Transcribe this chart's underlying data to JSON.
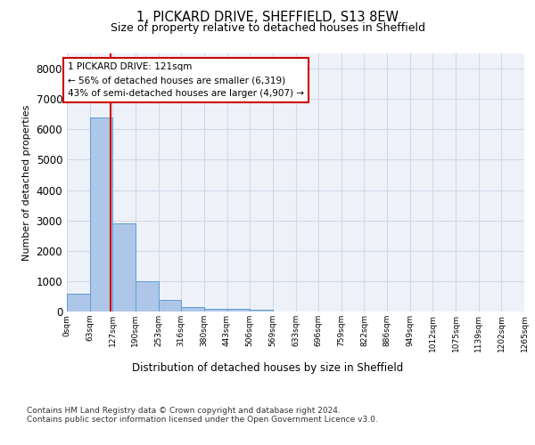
{
  "title": "1, PICKARD DRIVE, SHEFFIELD, S13 8EW",
  "subtitle": "Size of property relative to detached houses in Sheffield",
  "xlabel": "Distribution of detached houses by size in Sheffield",
  "ylabel": "Number of detached properties",
  "bin_labels": [
    "0sqm",
    "63sqm",
    "127sqm",
    "190sqm",
    "253sqm",
    "316sqm",
    "380sqm",
    "443sqm",
    "506sqm",
    "569sqm",
    "633sqm",
    "696sqm",
    "759sqm",
    "822sqm",
    "886sqm",
    "949sqm",
    "1012sqm",
    "1075sqm",
    "1139sqm",
    "1202sqm",
    "1265sqm"
  ],
  "bar_heights": [
    600,
    6400,
    2900,
    1000,
    380,
    160,
    100,
    80,
    60,
    0,
    0,
    0,
    0,
    0,
    0,
    0,
    0,
    0,
    0,
    0
  ],
  "bar_color": "#aec6e8",
  "bar_edge_color": "#5a9fd4",
  "property_size": 121,
  "bin_width": 63,
  "marker_line_color": "#cc0000",
  "annotation_box_color": "#cc0000",
  "annotation_text": "1 PICKARD DRIVE: 121sqm\n← 56% of detached houses are smaller (6,319)\n43% of semi-detached houses are larger (4,907) →",
  "annotation_fontsize": 7.5,
  "grid_color": "#d0d8e8",
  "background_color": "#eef2f8",
  "footer_line1": "Contains HM Land Registry data © Crown copyright and database right 2024.",
  "footer_line2": "Contains public sector information licensed under the Open Government Licence v3.0.",
  "ylim": [
    0,
    8500
  ],
  "yticks": [
    0,
    1000,
    2000,
    3000,
    4000,
    5000,
    6000,
    7000,
    8000
  ]
}
